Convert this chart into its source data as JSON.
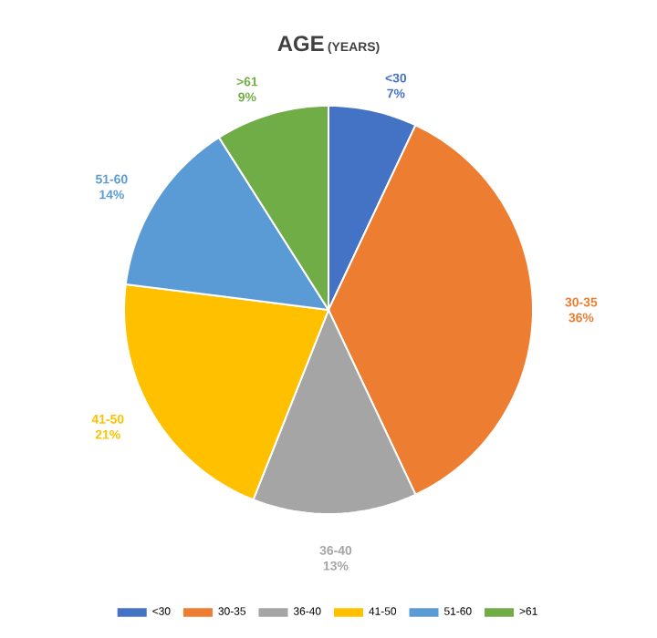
{
  "chart_data": {
    "type": "pie",
    "title": "AGE",
    "subtitle": "(YEARS)",
    "categories": [
      "<30",
      "30-35",
      "36-40",
      "41-50",
      "51-60",
      ">61"
    ],
    "values": [
      7,
      36,
      13,
      21,
      14,
      9
    ],
    "value_labels": [
      "7%",
      "36%",
      "13%",
      "21%",
      "14%",
      "9%"
    ],
    "colors": [
      "#4472c4",
      "#ed7d31",
      "#a5a5a5",
      "#ffc000",
      "#5b9bd5",
      "#70ad47"
    ],
    "legend": "bottom"
  }
}
